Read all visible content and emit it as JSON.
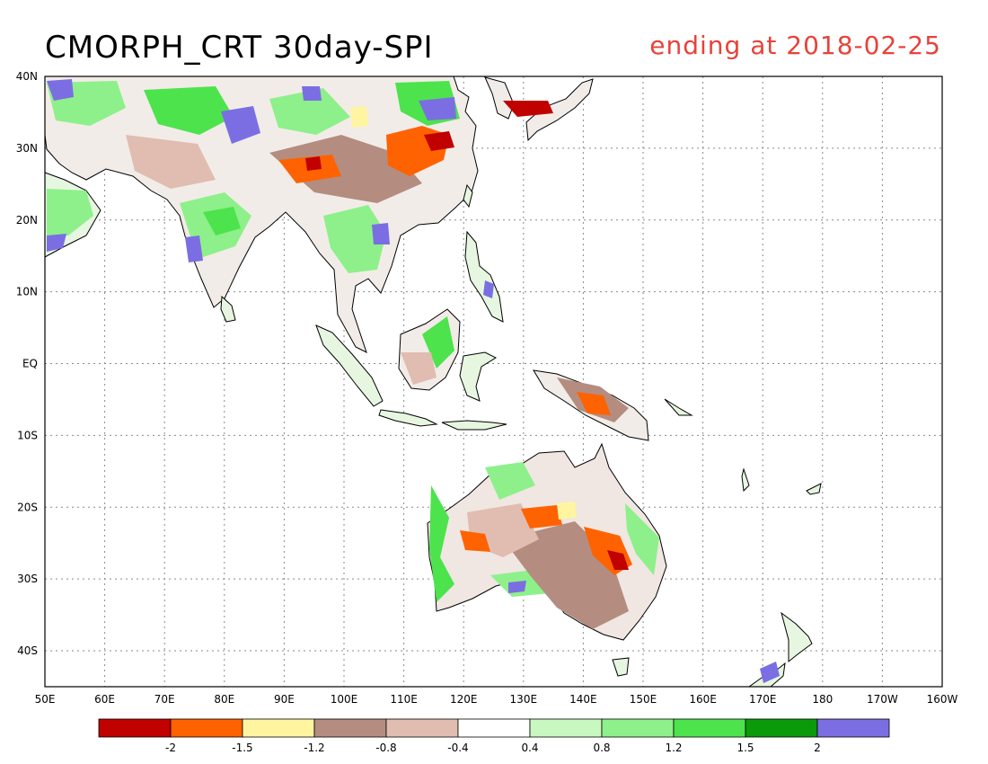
{
  "title": "CMORPH_CRT 30day-SPI",
  "subtitle": "ending at 2018-02-25",
  "colors": {
    "title": "#000000",
    "subtitle": "#e8423a",
    "grid": "#8a8a8a",
    "frame": "#000000",
    "coast": "#000000"
  },
  "map": {
    "lon_range": [
      50,
      200
    ],
    "lat_range": [
      -45,
      40
    ],
    "lon_ticks": [
      "50E",
      "60E",
      "70E",
      "80E",
      "90E",
      "100E",
      "110E",
      "120E",
      "130E",
      "140E",
      "150E",
      "160E",
      "170E",
      "180",
      "170W",
      "160W"
    ],
    "lat_ticks": [
      "40N",
      "30N",
      "20N",
      "10N",
      "EQ",
      "10S",
      "20S",
      "30S",
      "40S"
    ],
    "lat_tick_values": [
      40,
      30,
      20,
      10,
      0,
      -10,
      -20,
      -30,
      -40
    ],
    "grid": "dotted"
  },
  "colorbar": {
    "colors": [
      "#c10000",
      "#ff6200",
      "#fff5a0",
      "#b48d80",
      "#e0bdb0",
      "#ffffff",
      "#c8f8c0",
      "#8ef08a",
      "#4de34d",
      "#0a9a0a",
      "#7b6ee3"
    ],
    "labels": [
      "-2",
      "-1.5",
      "-1.2",
      "-0.8",
      "-0.4",
      "0.4",
      "0.8",
      "1.2",
      "1.5",
      "2"
    ]
  }
}
